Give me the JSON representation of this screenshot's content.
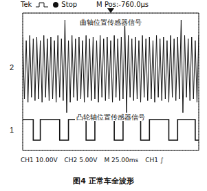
{
  "chart_data": {
    "type": "line",
    "title": "图4 正常车全波形",
    "header": [
      "Tek",
      "Stop",
      "M Pos:-760.0µs"
    ],
    "footer": [
      "CH1 10.00V",
      "CH2 5.00V",
      "M 25.00ms",
      "CH1 ∫"
    ],
    "xlim": [
      0,
      10
    ],
    "xticks": [
      0,
      1,
      2,
      3,
      4,
      5,
      6,
      7,
      8,
      9,
      10
    ],
    "ylim": [
      0,
      8
    ],
    "yticks": [
      0,
      1,
      2,
      3,
      4,
      5,
      6,
      7,
      8
    ],
    "grid": true,
    "tick_labels": false,
    "series": [
      {
        "name": "曲轴位置传感器信号",
        "channel": "2",
        "color": "#111111",
        "line_style": "solid",
        "x": [
          0,
          0.1,
          0.2,
          0.3,
          0.4,
          0.5,
          0.6,
          0.7,
          0.8,
          0.9,
          1,
          1.1,
          1.2,
          1.3,
          1.4,
          1.5,
          1.6,
          1.7,
          1.8,
          1.9,
          2,
          2.1,
          2.2,
          2.3,
          2.4,
          2.5,
          2.6,
          2.7,
          2.8,
          2.9,
          3,
          3.1,
          3.2,
          3.3,
          3.4,
          3.5,
          3.6,
          3.7,
          3.8,
          3.9,
          4,
          4.1,
          4.2,
          4.3,
          4.4,
          4.5,
          4.6,
          4.7,
          4.8,
          4.9,
          5,
          5.1,
          5.2,
          5.3,
          5.4,
          5.5,
          5.6,
          5.7,
          5.8,
          5.9,
          6,
          6.1,
          6.2,
          6.3,
          6.4,
          6.5,
          6.6,
          6.7,
          6.8,
          6.9,
          7,
          7.1,
          7.2,
          7.3,
          7.4,
          7.5,
          7.6,
          7.7,
          7.8,
          7.9,
          8,
          8.1,
          8.2,
          8.3,
          8.4,
          8.5,
          8.6,
          8.7,
          8.8,
          8.9,
          9,
          9.1,
          9.2,
          9.3,
          9.4,
          9.5,
          9.6,
          9.7,
          9.8,
          9.9,
          10
        ],
        "values": [
          6.6,
          3.0,
          6.4,
          2.8,
          6.7,
          3.1,
          6.5,
          2.9,
          6.6,
          3.0,
          6.4,
          2.8,
          6.7,
          3.1,
          6.5,
          2.9,
          6.6,
          3.0,
          6.4,
          2.8,
          6.7,
          3.1,
          6.5,
          2.9,
          7.6,
          2.2,
          6.4,
          2.8,
          6.7,
          3.1,
          6.5,
          2.9,
          6.6,
          3.0,
          6.4,
          2.8,
          6.7,
          3.1,
          6.5,
          2.9,
          6.6,
          3.0,
          6.4,
          2.8,
          6.7,
          3.1,
          6.5,
          2.9,
          6.6,
          3.0,
          6.4,
          2.8,
          6.7,
          3.1,
          6.5,
          2.9,
          6.6,
          3.0,
          7.6,
          2.2,
          6.7,
          3.1,
          6.5,
          2.9,
          6.6,
          3.0,
          6.4,
          2.8,
          6.7,
          3.1,
          6.5,
          2.9,
          6.6,
          3.0,
          6.4,
          2.8,
          6.7,
          3.1,
          6.5,
          2.9,
          6.6,
          3.0,
          6.4,
          2.8,
          6.7,
          3.1,
          6.5,
          2.9,
          6.6,
          3.0,
          7.6,
          2.2,
          6.7,
          3.1,
          6.5,
          2.9,
          6.6,
          3.0,
          6.4,
          2.8,
          6.7
        ]
      },
      {
        "name": "凸轮轴位置传感器信号",
        "channel": "1",
        "color": "#111111",
        "line_style": "step",
        "x": [
          0,
          0.6,
          1.0,
          2.1,
          2.6,
          3.6,
          4.1,
          5.2,
          5.7,
          6.7,
          7.2,
          8.3,
          8.8,
          9.8,
          10
        ],
        "values": [
          1.8,
          0.6,
          1.8,
          0.6,
          1.8,
          0.6,
          1.8,
          0.6,
          1.8,
          0.6,
          1.8,
          0.6,
          1.8,
          0.6,
          0.6
        ]
      }
    ]
  }
}
